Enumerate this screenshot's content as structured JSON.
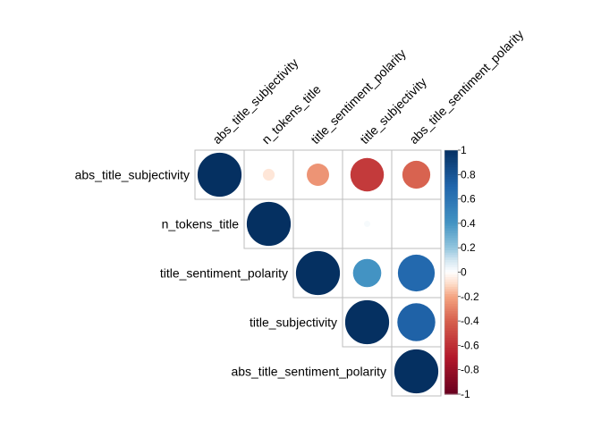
{
  "chart_data": {
    "type": "heatmap",
    "style": "upper-triangle correlation circles",
    "variables": [
      "abs_title_subjectivity",
      "n_tokens_title",
      "title_sentiment_polarity",
      "title_subjectivity",
      "abs_title_sentiment_polarity"
    ],
    "matrix": [
      [
        1.0,
        -0.07,
        -0.25,
        -0.56,
        -0.39
      ],
      [
        null,
        1.0,
        0.0,
        0.02,
        0.0
      ],
      [
        null,
        null,
        1.0,
        0.4,
        0.68
      ],
      [
        null,
        null,
        null,
        1.0,
        0.72
      ],
      [
        null,
        null,
        null,
        null,
        1.0
      ]
    ],
    "colorbar": {
      "range": [
        -1,
        1
      ],
      "ticks": [
        "1",
        "0.8",
        "0.6",
        "0.4",
        "0.2",
        "0",
        "-0.2",
        "-0.4",
        "-0.6",
        "-0.8",
        "-1"
      ]
    },
    "colors": {
      "negative_strong": "#67001f",
      "negative_mid": "#d6604d",
      "negative_light": "#fddbc7",
      "neutral": "#ffffff",
      "positive_light": "#d1e5f0",
      "positive_mid": "#4393c3",
      "positive_strong": "#053061",
      "grid": "#bebebe"
    }
  }
}
